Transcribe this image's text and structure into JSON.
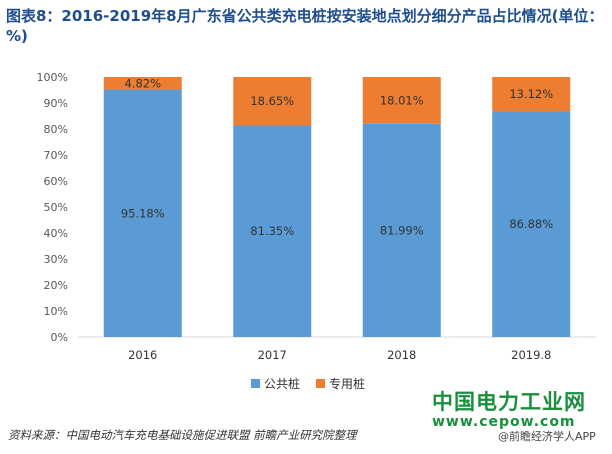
{
  "title": "图表8：2016-2019年8月广东省公共类充电桩按安装地点划分细分产品占比情况(单位：%)",
  "source": "资料来源：中国电动汽车充电基础设施促进联盟 前瞻产业研究院整理",
  "brand": {
    "name": "中国电力工业网",
    "url": "www.cepow.com",
    "credit": "@前瞻经济学人APP"
  },
  "chart_data": {
    "type": "bar",
    "stacked": true,
    "categories": [
      "2016",
      "2017",
      "2018",
      "2019.8"
    ],
    "series": [
      {
        "name": "公共桩",
        "values": [
          95.18,
          81.35,
          81.99,
          86.88
        ],
        "labels": [
          "95.18%",
          "81.35%",
          "81.99%",
          "86.88%"
        ],
        "color": "#5b9bd5"
      },
      {
        "name": "专用桩",
        "values": [
          4.82,
          18.65,
          18.01,
          13.12
        ],
        "labels": [
          "4.82%",
          "18.65%",
          "18.01%",
          "13.12%"
        ],
        "color": "#ed7d31"
      }
    ],
    "y_ticks": [
      "0%",
      "10%",
      "20%",
      "30%",
      "40%",
      "50%",
      "60%",
      "70%",
      "80%",
      "90%",
      "100%"
    ],
    "ylim": [
      0,
      100
    ],
    "grid": false,
    "legend_position": "bottom"
  }
}
